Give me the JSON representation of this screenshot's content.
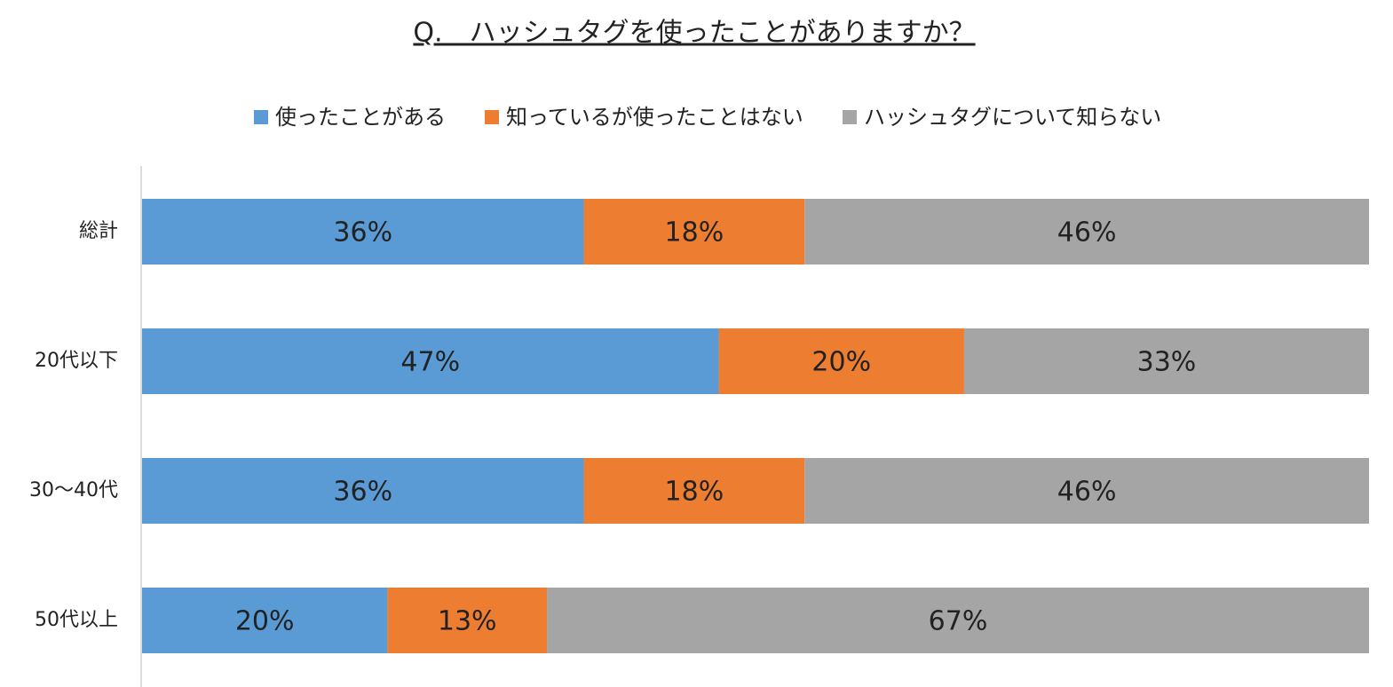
{
  "chart_data": {
    "type": "bar",
    "orientation": "horizontal",
    "stacked": true,
    "title": "Q.　ハッシュタグを使ったことがありますか？",
    "categories": [
      "総計",
      "20代以下",
      "30～40代",
      "50代以上"
    ],
    "xlim": [
      0,
      100
    ],
    "series": [
      {
        "name": "使ったことがある",
        "color": "#5b9bd5",
        "values": [
          36,
          47,
          36,
          20
        ],
        "value_labels": [
          "36%",
          "47%",
          "36%",
          "20%"
        ]
      },
      {
        "name": "知っているが使ったことはない",
        "color": "#ed7d31",
        "values": [
          18,
          20,
          18,
          13
        ],
        "value_labels": [
          "18%",
          "20%",
          "18%",
          "13%"
        ]
      },
      {
        "name": "ハッシュタグについて知らない",
        "color": "#a5a5a5",
        "values": [
          46,
          33,
          46,
          67
        ],
        "value_labels": [
          "46%",
          "33%",
          "46%",
          "67%"
        ]
      }
    ],
    "legend": "top"
  }
}
